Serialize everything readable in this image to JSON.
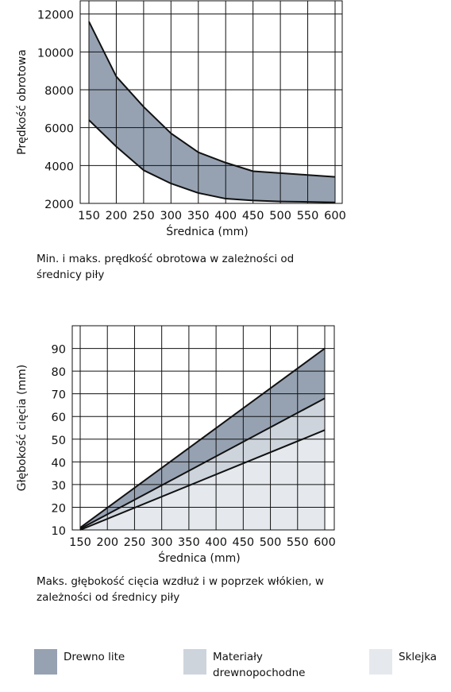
{
  "chart_data": [
    {
      "type": "area",
      "xlabel": "Średnica (mm)",
      "ylabel": "Prędkość obrotowa",
      "x": [
        150,
        200,
        250,
        300,
        350,
        400,
        450,
        500,
        550,
        600
      ],
      "xticks": [
        "150",
        "200",
        "250",
        "300",
        "350",
        "400",
        "450",
        "500",
        "550",
        "600"
      ],
      "yticks": [
        "2000",
        "4000",
        "6000",
        "8000",
        "10000",
        "12000"
      ],
      "xlim": [
        150,
        600
      ],
      "ylim": [
        2000,
        12700
      ],
      "grid": true,
      "band_color": "#96a2b2",
      "series": [
        {
          "values": [
            6400,
            5000,
            3750,
            3050,
            2550,
            2250,
            2150,
            2100,
            2080,
            2050
          ]
        },
        {
          "values": [
            11600,
            8700,
            7100,
            5700,
            4700,
            4150,
            3700,
            3600,
            3500,
            3400
          ]
        }
      ]
    },
    {
      "type": "area",
      "xlabel": "Średnica (mm)",
      "ylabel": "Głębokość cięcia (mm)",
      "x": [
        150,
        600
      ],
      "xticks": [
        "150",
        "200",
        "250",
        "300",
        "350",
        "400",
        "450",
        "500",
        "550",
        "600"
      ],
      "yticks": [
        "10",
        "20",
        "30",
        "40",
        "50",
        "60",
        "70",
        "80",
        "90"
      ],
      "xlim": [
        150,
        600
      ],
      "ylim": [
        10,
        93
      ],
      "grid": true,
      "series": [
        {
          "name": "Drewno lite",
          "values": [
            11,
            90
          ],
          "color": "#96a2b2"
        },
        {
          "name": "Materiały drewnopochodne",
          "values": [
            10.5,
            68
          ],
          "color": "#cdd4dc"
        },
        {
          "name": "Sklejka",
          "values": [
            10,
            54
          ],
          "color": "#e5e9ed"
        }
      ]
    }
  ],
  "captions": {
    "chart1": "Min. i maks. prędkość obrotowa w zależności od średnicy piły",
    "chart2": "Maks. głębokość cięcia wzdłuż i w poprzek włókien, w zależności od średnicy piły"
  },
  "legend": [
    {
      "label": "Drewno lite",
      "color": "#96a2b2"
    },
    {
      "label": "Materiały drewnopochodne",
      "color": "#cdd4dc"
    },
    {
      "label": "Sklejka",
      "color": "#e5e9ed"
    }
  ]
}
